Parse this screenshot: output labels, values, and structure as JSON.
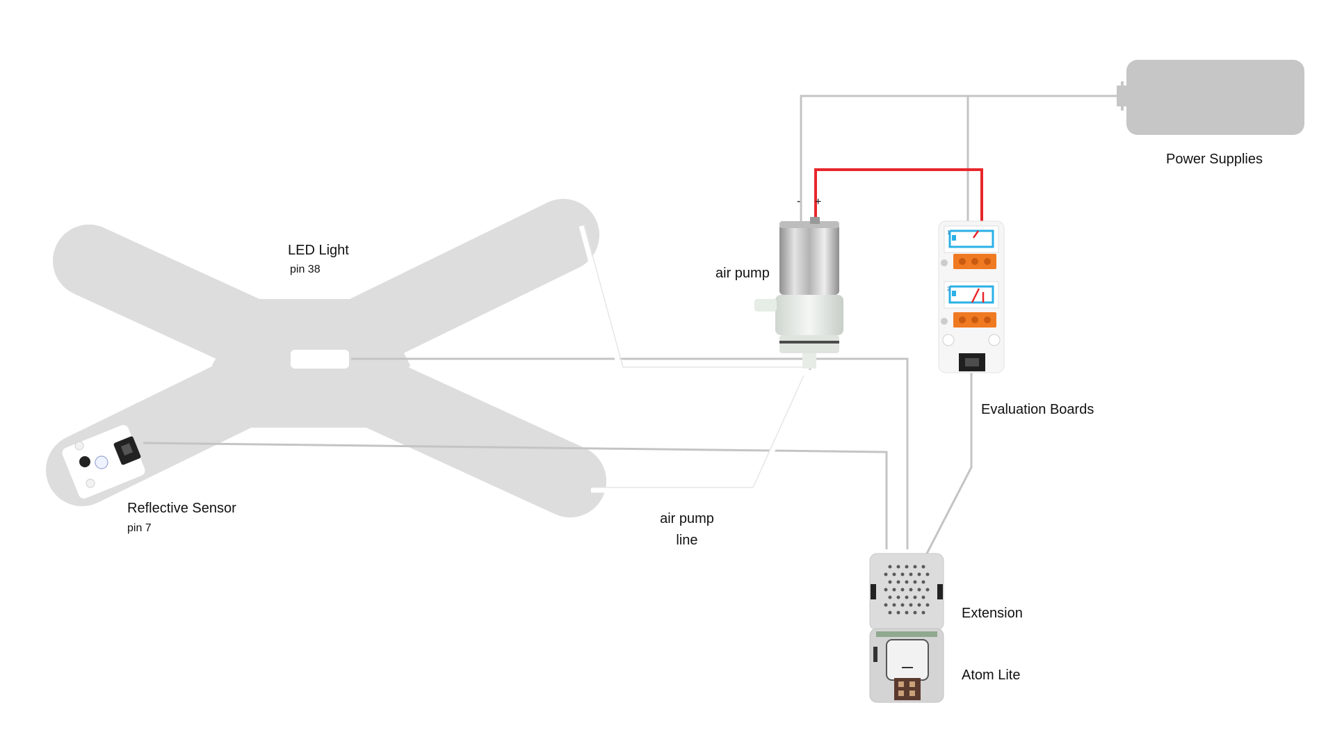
{
  "labels": {
    "led_light": "LED Light",
    "led_pin": "pin 38",
    "reflective_sensor": "Reflective Sensor",
    "sensor_pin": "pin 7",
    "air_pump": "air pump",
    "air_pump_line_1": "air pump",
    "air_pump_line_2": "line",
    "power_supplies": "Power Supplies",
    "evaluation_boards": "Evaluation Boards",
    "extension": "Extension",
    "atom_lite": "Atom Lite",
    "minus_sign": "-",
    "plus_sign": "+"
  },
  "relay_channels": {
    "channel_1": "1",
    "channel_2": "2"
  },
  "colors": {
    "wire_gray": "#c4c4c4",
    "wire_red": "#e8262b",
    "frame_gray": "#dddddd",
    "power_gray": "#c6c6c6",
    "relay_orange": "#f07a22",
    "relay_blue": "#2ab0e6"
  }
}
